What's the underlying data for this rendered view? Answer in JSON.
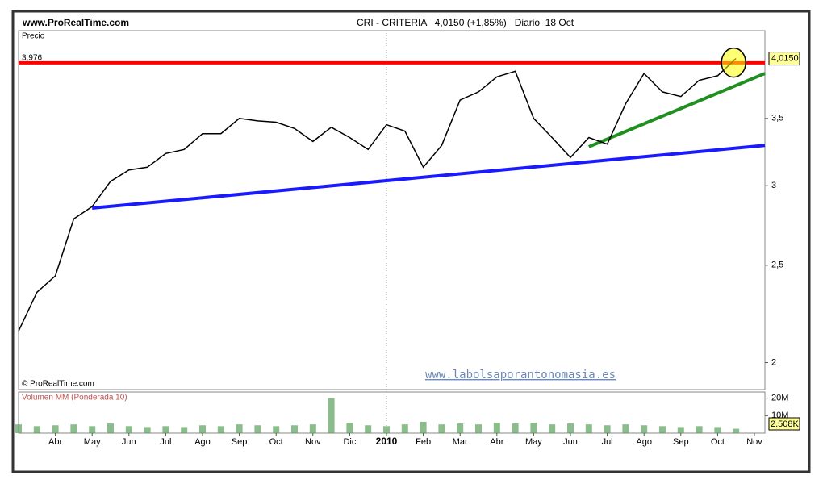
{
  "chart_data": [
    {
      "type": "line",
      "source": "www.ProRealTime.com",
      "title": "CRI - CRITERIA   4,0150 (+1,85%)   Diario  18 Oct",
      "y_label": "Precio",
      "copyright": "© ProRealTime.com",
      "watermark": "www.labolsaporantonomasia.es",
      "categories": [
        null,
        null,
        "Abr",
        null,
        "May",
        null,
        "Jun",
        null,
        "Jul",
        null,
        "Ago",
        null,
        "Sep",
        null,
        "Oct",
        null,
        "Nov",
        null,
        "Dic",
        null,
        "2010",
        null,
        "Feb",
        null,
        "Mar",
        null,
        "Abr",
        null,
        "May",
        null,
        "Jun",
        null,
        "Jul",
        null,
        "Ago",
        null,
        "Sep",
        null,
        "Oct",
        null,
        "Nov"
      ],
      "values": [
        2.15,
        2.35,
        2.44,
        2.78,
        2.86,
        3.03,
        3.11,
        3.13,
        3.23,
        3.26,
        3.38,
        3.38,
        3.5,
        3.48,
        3.47,
        3.42,
        3.32,
        3.43,
        3.35,
        3.26,
        3.45,
        3.4,
        3.13,
        3.29,
        3.65,
        3.72,
        3.85,
        3.9,
        3.5,
        3.35,
        3.2,
        3.35,
        3.3,
        3.62,
        3.88,
        3.72,
        3.68,
        3.82,
        3.86,
        4.015,
        null
      ],
      "value_labels": [
        null,
        null,
        null,
        null,
        null,
        null,
        null,
        null,
        null,
        null,
        null,
        null,
        null,
        null,
        null,
        null,
        null,
        null,
        null,
        null,
        null,
        null,
        null,
        null,
        null,
        null,
        null,
        null,
        null,
        null,
        null,
        null,
        null,
        null,
        null,
        null,
        null,
        null,
        null,
        "4,0150",
        null
      ],
      "color": "#000000",
      "log_scale": true,
      "ylim": [
        1.88,
        4.28
      ],
      "yticks": [
        2,
        {
          "value": 2.5,
          "label": "2,5"
        },
        3,
        {
          "value": 3.5,
          "label": "3,5"
        }
      ],
      "hline": {
        "value": 3.976,
        "label": "3,976",
        "color": "#ff0000"
      },
      "trendlines": [
        {
          "color": "#1a1aff",
          "from": [
            4,
            2.85
          ],
          "to": [
            40,
            3.29
          ]
        },
        {
          "color": "#1f8f1f",
          "from": [
            31,
            3.28
          ],
          "to": [
            40,
            3.88
          ]
        }
      ],
      "grid": false
    },
    {
      "type": "bar",
      "title": "Volumen MM (Ponderada 10)",
      "values": [
        5,
        4,
        4.5,
        5,
        4,
        5.5,
        4,
        3.5,
        4,
        3.5,
        4.5,
        4,
        5,
        4.5,
        4,
        4.5,
        5,
        20,
        6,
        4.5,
        4,
        5,
        6.5,
        5,
        5.5,
        5,
        6,
        5.5,
        6,
        5,
        5.5,
        5,
        4.5,
        5,
        4.5,
        4,
        3.5,
        4,
        3.5,
        2.508,
        null
      ],
      "value_labels": [
        null,
        null,
        null,
        null,
        null,
        null,
        null,
        null,
        null,
        null,
        null,
        null,
        null,
        null,
        null,
        null,
        null,
        null,
        null,
        null,
        null,
        null,
        null,
        null,
        null,
        null,
        null,
        null,
        null,
        null,
        null,
        null,
        null,
        null,
        null,
        null,
        null,
        null,
        null,
        "2.508K",
        null
      ],
      "color": "#5aa05a",
      "ylim": [
        0,
        23.5
      ],
      "yticks": [
        {
          "value": 10,
          "label": "10M"
        },
        {
          "value": 20,
          "label": "20M"
        }
      ]
    }
  ]
}
